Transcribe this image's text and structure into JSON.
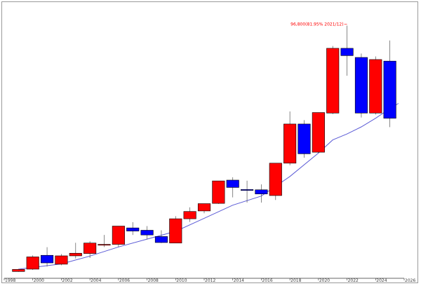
{
  "chart_data": {
    "type": "candlestick",
    "title": "",
    "xlabel": "",
    "ylabel": "",
    "x_ticks": [
      "1998",
      "2000",
      "2002",
      "2004",
      "2006",
      "2008",
      "2010",
      "2012",
      "2014",
      "2016",
      "2018",
      "2020",
      "2022",
      "2024",
      "2026"
    ],
    "x_range": [
      1998,
      2026
    ],
    "y_range": [
      0,
      105000
    ],
    "grid": false,
    "legend": "none",
    "colors": {
      "up": "#ff0000",
      "down": "#0000ff",
      "outline": "#000000",
      "moving_average": "#5b5bd6"
    },
    "annotation": {
      "text": "96,800(81.95% 2021/12)",
      "year": 2021,
      "value": 96800
    },
    "candles": [
      {
        "year": 1999,
        "open": 2600,
        "close": 3400,
        "high": 3600,
        "low": 2500
      },
      {
        "year": 2000,
        "open": 3500,
        "close": 8200,
        "high": 8800,
        "low": 3200
      },
      {
        "year": 2001,
        "open": 8800,
        "close": 5900,
        "high": 11900,
        "low": 4500
      },
      {
        "year": 2002,
        "open": 5400,
        "close": 8600,
        "high": 9300,
        "low": 5000
      },
      {
        "year": 2003,
        "open": 8600,
        "close": 9600,
        "high": 13600,
        "low": 7600
      },
      {
        "year": 2004,
        "open": 9500,
        "close": 13500,
        "high": 14200,
        "low": 7800
      },
      {
        "year": 2005,
        "open": 13000,
        "close": 13000,
        "high": 16600,
        "low": 12000
      },
      {
        "year": 2006,
        "open": 13000,
        "close": 20000,
        "high": 20000,
        "low": 12000
      },
      {
        "year": 2007,
        "open": 19300,
        "close": 18100,
        "high": 21500,
        "low": 16600
      },
      {
        "year": 2008,
        "open": 18400,
        "close": 16600,
        "high": 20000,
        "low": 14900
      },
      {
        "year": 2009,
        "open": 16000,
        "close": 13700,
        "high": 18400,
        "low": 13500
      },
      {
        "year": 2010,
        "open": 13500,
        "close": 22800,
        "high": 23800,
        "low": 13500
      },
      {
        "year": 2011,
        "open": 22800,
        "close": 25600,
        "high": 27200,
        "low": 21600
      },
      {
        "year": 2012,
        "open": 25800,
        "close": 28600,
        "high": 28600,
        "low": 24900
      },
      {
        "year": 2013,
        "open": 28700,
        "close": 37300,
        "high": 37300,
        "low": 28500
      },
      {
        "year": 2014,
        "open": 37600,
        "close": 34800,
        "high": 38700,
        "low": 31000
      },
      {
        "year": 2015,
        "open": 34000,
        "close": 33900,
        "high": 37400,
        "low": 29000
      },
      {
        "year": 2016,
        "open": 33900,
        "close": 32300,
        "high": 36000,
        "low": 29000
      },
      {
        "year": 2017,
        "open": 31700,
        "close": 44100,
        "high": 44100,
        "low": 30000
      },
      {
        "year": 2018,
        "open": 44100,
        "close": 59100,
        "high": 63900,
        "low": 43300
      },
      {
        "year": 2019,
        "open": 59100,
        "close": 47700,
        "high": 60600,
        "low": 46200
      },
      {
        "year": 2020,
        "open": 48300,
        "close": 63500,
        "high": 63500,
        "low": 48000
      },
      {
        "year": 2021,
        "open": 63300,
        "close": 88100,
        "high": 89000,
        "low": 62900
      },
      {
        "year": 2022,
        "open": 88100,
        "close": 85300,
        "high": 96800,
        "low": 77600
      },
      {
        "year": 2023,
        "open": 84600,
        "close": 63300,
        "high": 86100,
        "low": 61600
      },
      {
        "year": 2024,
        "open": 63300,
        "close": 83800,
        "high": 85000,
        "low": 62700
      },
      {
        "year": 2025,
        "open": 83200,
        "close": 61300,
        "high": 91100,
        "low": 57900
      }
    ],
    "moving_average": [
      {
        "year": 1999,
        "value": 3500
      },
      {
        "year": 2002,
        "value": 5500
      },
      {
        "year": 2004,
        "value": 8500
      },
      {
        "year": 2006,
        "value": 12000
      },
      {
        "year": 2008,
        "value": 15000
      },
      {
        "year": 2010,
        "value": 18000
      },
      {
        "year": 2012,
        "value": 23000
      },
      {
        "year": 2014,
        "value": 28000
      },
      {
        "year": 2016,
        "value": 31500
      },
      {
        "year": 2018,
        "value": 39000
      },
      {
        "year": 2020,
        "value": 48000
      },
      {
        "year": 2021,
        "value": 53000
      },
      {
        "year": 2022,
        "value": 55300
      },
      {
        "year": 2023,
        "value": 58000
      },
      {
        "year": 2024,
        "value": 61300
      },
      {
        "year": 2025,
        "value": 65000
      },
      {
        "year": 2025.6,
        "value": 67000
      }
    ]
  }
}
